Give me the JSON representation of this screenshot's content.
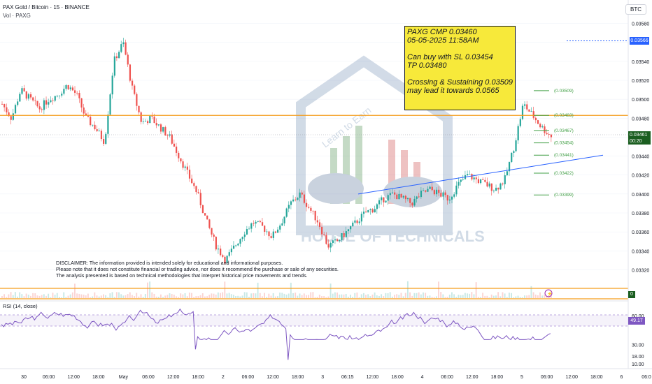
{
  "header": {
    "title": "PAX Gold / Bitcoin · 15 · BINANCE",
    "volume": "Vol · PAXG",
    "currency_tag": "BTC"
  },
  "note": {
    "lines": [
      "PAXG CMP 0.03460",
      "05-05-2025 11:58AM",
      "",
      "Can buy with SL 0.03454",
      "TP 0.03480",
      "",
      "Crossing & Sustaining 0.03509",
      "may lead it towards 0.0565"
    ]
  },
  "disclaimer": {
    "lines": [
      "DISCLAIMER: The information provided is intended solely for educational and informational purposes.",
      "Please note that it does not constitute financial or trading advice, nor does it recommend the purchase or sale of any securities.",
      "The analysis presented is based on technical methodologies that interpret historical price movements and trends."
    ]
  },
  "price_axis": {
    "ticks": [
      "0.03580",
      "0.03560",
      "0.03540",
      "0.03520",
      "0.03500",
      "0.03480",
      "0.03460",
      "0.03440",
      "0.03420",
      "0.03400",
      "0.03380",
      "0.03360",
      "0.03340",
      "0.03320"
    ],
    "current_price": "0.03461",
    "countdown": "00:20",
    "high_marker": "0.03566"
  },
  "levels": [
    {
      "label": "(0.03509)",
      "value": 0.03509
    },
    {
      "label": "(0.03483)",
      "value": 0.03483
    },
    {
      "label": "(0.03467)",
      "value": 0.03467
    },
    {
      "label": "(0.03454)",
      "value": 0.03454
    },
    {
      "label": "(0.03441)",
      "value": 0.03441
    },
    {
      "label": "(0.03422)",
      "value": 0.03422
    },
    {
      "label": "(0.03399)",
      "value": 0.03399
    }
  ],
  "rsi": {
    "label": "RSI (14, close)",
    "value": "49.17",
    "ticks": [
      "60.00",
      "30.00",
      "18.00",
      "10.00"
    ]
  },
  "time_axis": {
    "labels": [
      "30",
      "06:00",
      "12:00",
      "18:00",
      "May",
      "06:00",
      "12:00",
      "18:00",
      "2",
      "06:00",
      "12:00",
      "18:00",
      "3",
      "06:15",
      "12:00",
      "18:00",
      "4",
      "06:00",
      "12:00",
      "18:00",
      "5",
      "06:00",
      "12:00",
      "18:00",
      "6",
      "06:0"
    ]
  },
  "watermark": {
    "brand": "HOUSE OF TECHNICALS",
    "tagline": "Learn to Earn"
  },
  "misc": {
    "zero_badge": "0"
  },
  "colors": {
    "up": "#26a69a",
    "down": "#ef5350",
    "support_orange": "#f59d1c",
    "trendline": "#2962ff",
    "level_green": "#43a047",
    "rsi_line": "#7e57c2",
    "note_bg": "#f7e93a"
  },
  "chart_data": {
    "type": "candlestick",
    "x_labels": [
      "30",
      "06:00",
      "12:00",
      "18:00",
      "May",
      "06:00",
      "12:00",
      "18:00",
      "2",
      "06:00",
      "12:00",
      "18:00",
      "3",
      "06:15",
      "12:00",
      "18:00",
      "4",
      "06:00",
      "12:00",
      "18:00",
      "5",
      "06:00",
      "12:00"
    ],
    "close": [
      0.03495,
      0.0348,
      0.0351,
      0.035,
      0.0349,
      0.035,
      0.03505,
      0.03515,
      0.03505,
      0.0348,
      0.0347,
      0.03455,
      0.0354,
      0.0356,
      0.0351,
      0.03475,
      0.0348,
      0.0347,
      0.0346,
      0.0344,
      0.0342,
      0.034,
      0.0337,
      0.03345,
      0.0333,
      0.03345,
      0.0336,
      0.0337,
      0.03365,
      0.03355,
      0.0337,
      0.0339,
      0.034,
      0.03385,
      0.0337,
      0.03345,
      0.0335,
      0.0336,
      0.0337,
      0.0338,
      0.03385,
      0.03395,
      0.034,
      0.03395,
      0.0339,
      0.034,
      0.03405,
      0.034,
      0.03395,
      0.0341,
      0.0342,
      0.03415,
      0.0341,
      0.03405,
      0.03415,
      0.0345,
      0.03495,
      0.03483,
      0.0347,
      0.03461
    ],
    "support_line": 0.03483,
    "trendline": [
      {
        "x": 0.034
      },
      {
        "x": 0.03441
      }
    ],
    "ylim": [
      0.0331,
      0.0359
    ]
  }
}
